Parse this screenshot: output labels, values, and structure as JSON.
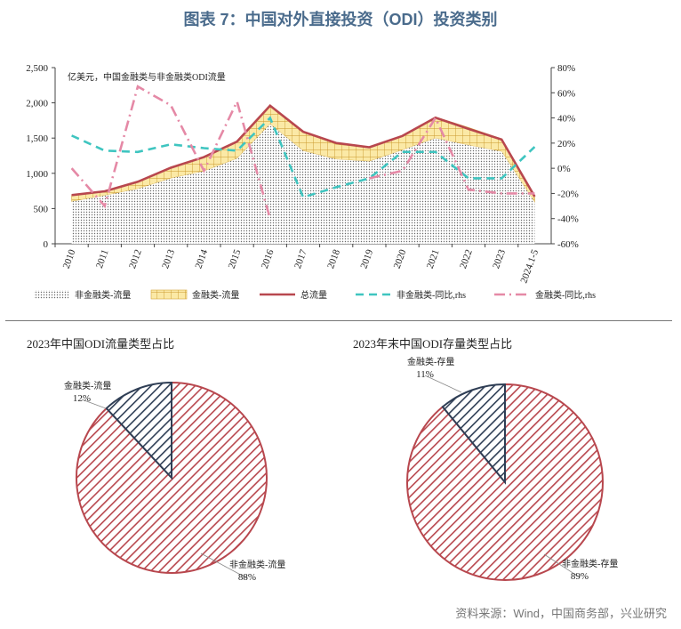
{
  "title": "图表 7：中国对外直接投资（ODI）投资类别",
  "source": "资料来源：Wind，中国商务部，兴业研究",
  "chart_data": [
    {
      "type": "area",
      "unit_note": "亿美元，中国金融类与非金融类ODI流量",
      "categories": [
        "2010",
        "2011",
        "2012",
        "2013",
        "2014",
        "2015",
        "2016",
        "2017",
        "2018",
        "2019",
        "2020",
        "2021",
        "2022",
        "2023",
        "2024.1-5"
      ],
      "ylim": [
        0,
        2500
      ],
      "y_ticks": [
        "0",
        "500",
        "1,000",
        "1,500",
        "2,000",
        "2,500"
      ],
      "y2lim": [
        -60,
        80
      ],
      "y2_ticks": [
        "-60%",
        "-40%",
        "-20%",
        "0%",
        "20%",
        "40%",
        "60%",
        "80%"
      ],
      "series": [
        {
          "name": "非金融类-流量",
          "axis": "left",
          "kind": "area-dotted",
          "color": "#555555",
          "values": [
            600,
            685,
            780,
            930,
            1030,
            1210,
            1700,
            1320,
            1200,
            1170,
            1330,
            1500,
            1400,
            1310,
            590
          ]
        },
        {
          "name": "金融类-流量",
          "axis": "left",
          "kind": "area-stack",
          "color": "#d4a73a",
          "values": [
            90,
            60,
            100,
            150,
            200,
            240,
            260,
            270,
            210,
            200,
            200,
            300,
            250,
            180,
            80
          ]
        },
        {
          "name": "总流量",
          "axis": "left",
          "kind": "line",
          "color": "#b8474e",
          "values": [
            690,
            745,
            880,
            1080,
            1230,
            1450,
            1960,
            1590,
            1430,
            1370,
            1530,
            1790,
            1630,
            1480,
            670
          ]
        },
        {
          "name": "非金融类-同比,rhs",
          "axis": "right",
          "kind": "dash",
          "color": "#3fc5c0",
          "values": [
            26,
            14,
            13,
            19,
            16,
            14,
            40,
            -23,
            -15,
            -8,
            13,
            13,
            -8,
            -8,
            17
          ]
        },
        {
          "name": "金融类-同比,rhs",
          "axis": "right",
          "kind": "dashdot",
          "color": "#e589a6",
          "values": [
            0,
            -30,
            65,
            50,
            -2,
            53,
            -40,
            null,
            null,
            -8,
            -2,
            40,
            -17,
            -20,
            -20
          ]
        }
      ]
    },
    {
      "type": "pie",
      "title": "2023年中国ODI流量类型占比",
      "slices": [
        {
          "label": "金融类-流量",
          "pct_label": "12%",
          "value": 12,
          "color": "#2f3e55"
        },
        {
          "label": "非金融类-流量",
          "pct_label": "88%",
          "value": 88,
          "color": "#b8474e"
        }
      ]
    },
    {
      "type": "pie",
      "title": "2023年末中国ODI存量类型占比",
      "slices": [
        {
          "label": "金融类-存量",
          "pct_label": "11%",
          "value": 11,
          "color": "#2f3e55"
        },
        {
          "label": "非金融类-存量",
          "pct_label": "89%",
          "value": 89,
          "color": "#b8474e"
        }
      ]
    }
  ]
}
